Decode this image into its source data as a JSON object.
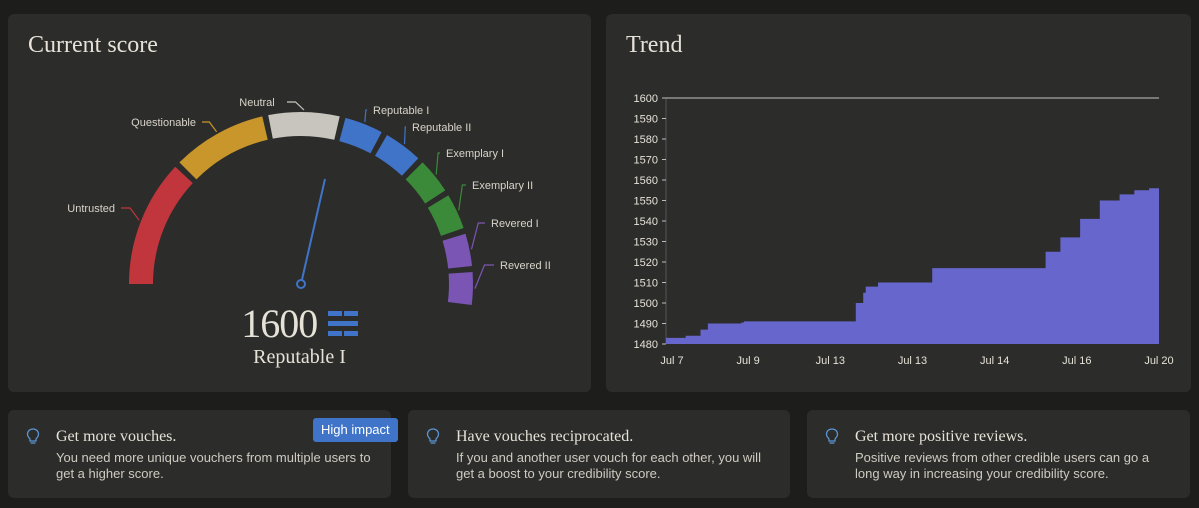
{
  "score_card": {
    "title": "Current score",
    "score": "1600",
    "level": "Reputable I",
    "segments": [
      {
        "label": "Untrusted",
        "color": "#c0363c"
      },
      {
        "label": "Questionable",
        "color": "#c9962b"
      },
      {
        "label": "Neutral",
        "color": "#c8c5be"
      },
      {
        "label": "Reputable I",
        "color": "#3f74c9"
      },
      {
        "label": "Reputable II",
        "color": "#3f74c9"
      },
      {
        "label": "Exemplary I",
        "color": "#3a8a3a"
      },
      {
        "label": "Exemplary II",
        "color": "#3a8a3a"
      },
      {
        "label": "Revered I",
        "color": "#7b55b4"
      },
      {
        "label": "Revered II",
        "color": "#7b55b4"
      }
    ],
    "accent": "#3f74c9"
  },
  "trend_card": {
    "title": "Trend"
  },
  "chart_data": {
    "type": "area",
    "y_ticks": [
      1480,
      1490,
      1500,
      1510,
      1520,
      1530,
      1540,
      1550,
      1560,
      1570,
      1580,
      1590,
      1600
    ],
    "x_tick_labels": [
      "Jul 7",
      "Jul 9",
      "Jul 13",
      "Jul 13",
      "Jul 14",
      "Jul 16",
      "Jul 20"
    ],
    "ylim": [
      1480,
      1600
    ],
    "color": "#6666cc",
    "series": [
      {
        "x": [
          0,
          4,
          7,
          8.5,
          15,
          15.3,
          15.8,
          16.3,
          17,
          17.5,
          18.5,
          22,
          23,
          24.5,
          34,
          38,
          38.5,
          40,
          40.5,
          43,
          46,
          48,
          50,
          52,
          54,
          55.5,
          59,
          60,
          61.5,
          63,
          65,
          66.5,
          69,
          70,
          72,
          75,
          77,
          80,
          84,
          88,
          92,
          95,
          98,
          100
        ],
        "y": [
          1483,
          1484,
          1487,
          1490,
          1490,
          1490.5,
          1491,
          1491,
          1491,
          1491,
          1491,
          1491,
          1491,
          1491,
          1491,
          1491,
          1500,
          1505,
          1508,
          1510,
          1510,
          1510,
          1510,
          1510,
          1517,
          1517,
          1517,
          1517,
          1517,
          1517,
          1517,
          1517,
          1517,
          1517,
          1517,
          1517,
          1525,
          1532,
          1541,
          1550,
          1553,
          1555,
          1556,
          1562
        ]
      }
    ],
    "annotations": []
  },
  "tips": [
    {
      "title": "Get more vouches.",
      "body": "You need more unique vouchers from multiple users to get a higher score.",
      "badge": "High impact"
    },
    {
      "title": "Have vouches reciprocated.",
      "body": "If you and another user vouch for each other, you will get a boost to your credibility score."
    },
    {
      "title": "Get more positive reviews.",
      "body": "Positive reviews from other credible users can go a long way in increasing your credibility score."
    }
  ]
}
